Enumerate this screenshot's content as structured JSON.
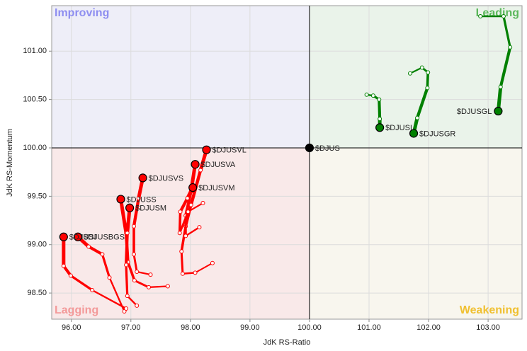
{
  "chart_data": {
    "type": "rrg",
    "x_label": "JdK RS-Ratio",
    "y_label": "JdK RS-Momentum",
    "xlim": [
      95.67,
      103.57
    ],
    "ylim": [
      98.23,
      101.47
    ],
    "xticks": [
      {
        "value": 96,
        "label": "96.00"
      },
      {
        "value": 97,
        "label": "97.00"
      },
      {
        "value": 98,
        "label": "98.00"
      },
      {
        "value": 99,
        "label": "99.00"
      },
      {
        "value": 100,
        "label": "100.00"
      },
      {
        "value": 101,
        "label": "101.00"
      },
      {
        "value": 102,
        "label": "102.00"
      },
      {
        "value": 103,
        "label": "103.00"
      }
    ],
    "yticks": [
      {
        "value": 98.5,
        "label": "98.50"
      },
      {
        "value": 99,
        "label": "99.00"
      },
      {
        "value": 99.5,
        "label": "99.50"
      },
      {
        "value": 100,
        "label": "100.00"
      },
      {
        "value": 100.5,
        "label": "100.50"
      },
      {
        "value": 101,
        "label": "101.00"
      }
    ],
    "grid": true,
    "quadrant_split": {
      "x": 100,
      "y": 100
    },
    "quadrants": [
      {
        "label": "Improving",
        "corner": "top-left",
        "color": "#8e8ef0",
        "background": "#eeeef8"
      },
      {
        "label": "Leading",
        "corner": "top-right",
        "color": "#5cb85c",
        "background": "#eaf3ea"
      },
      {
        "label": "Lagging",
        "corner": "bottom-left",
        "color": "#f39a9a",
        "background": "#f9e9e9"
      },
      {
        "label": "Weakening",
        "corner": "bottom-right",
        "color": "#f0c030",
        "background": "#f8f6ee"
      }
    ],
    "series": [
      {
        "name": "$DJUSGL",
        "color": "#008000",
        "x": [
          102.87,
          103.26,
          103.37,
          103.21,
          103.17
        ],
        "values": [
          101.36,
          101.36,
          101.04,
          100.63,
          100.38
        ]
      },
      {
        "name": "$DJUSGR",
        "color": "#008000",
        "x": [
          101.69,
          101.89,
          101.99,
          101.98,
          101.81,
          101.75
        ],
        "values": [
          100.77,
          100.83,
          100.78,
          100.62,
          100.31,
          100.15
        ]
      },
      {
        "name": "$DJUSL",
        "color": "#008000",
        "x": [
          100.96,
          101.07,
          101.17,
          101.18,
          101.18
        ],
        "values": [
          100.55,
          100.54,
          100.5,
          100.3,
          100.21
        ]
      },
      {
        "name": "$DJUS",
        "color": "#000000",
        "x": [
          100
        ],
        "values": [
          100
        ]
      },
      {
        "name": "$DJUSVL",
        "color": "#ff0000",
        "x": [
          98.37,
          98.08,
          97.87,
          97.85,
          97.92,
          98.01,
          98.17,
          98.27
        ],
        "values": [
          98.81,
          98.71,
          98.7,
          98.93,
          99.19,
          99.41,
          99.77,
          99.98
        ]
      },
      {
        "name": "$DJUSVA",
        "color": "#ff0000",
        "x": [
          98.15,
          97.92,
          97.92,
          98.01,
          98.08
        ],
        "values": [
          99.18,
          99.09,
          99.3,
          99.55,
          99.83
        ]
      },
      {
        "name": "$DJUSVM",
        "color": "#ff0000",
        "x": [
          98.21,
          97.96,
          97.82,
          97.83,
          97.95,
          98.04
        ],
        "values": [
          99.43,
          99.34,
          99.12,
          99.34,
          99.48,
          99.59
        ]
      },
      {
        "name": "$DJUSVS",
        "color": "#ff0000",
        "x": [
          97.33,
          97.1,
          97.05,
          97.05,
          97.13,
          97.2
        ],
        "values": [
          98.69,
          98.72,
          98.9,
          99.19,
          99.48,
          99.69
        ]
      },
      {
        "name": "$DJUSS",
        "color": "#ff0000",
        "x": [
          97.62,
          97.3,
          97.06,
          96.95,
          96.92,
          96.83
        ],
        "values": [
          98.57,
          98.56,
          98.63,
          98.82,
          99.12,
          99.47
        ]
      },
      {
        "name": "$DJUSM",
        "color": "#ff0000",
        "x": [
          97.1,
          96.94,
          96.92,
          96.94,
          96.98
        ],
        "values": [
          98.37,
          98.47,
          98.79,
          99.12,
          99.38
        ]
      },
      {
        "name": "$DJUSBGS",
        "color": "#ff0000",
        "x": [
          96.89,
          96.64,
          96.52,
          96.29,
          96.11
        ],
        "values": [
          98.31,
          98.66,
          98.9,
          98.98,
          99.08
        ]
      },
      {
        "name": "$DJUSI",
        "color": "#ff0000",
        "x": [
          96.92,
          96.35,
          95.99,
          95.87,
          95.87
        ],
        "values": [
          98.34,
          98.53,
          98.68,
          98.78,
          99.08
        ]
      }
    ]
  }
}
